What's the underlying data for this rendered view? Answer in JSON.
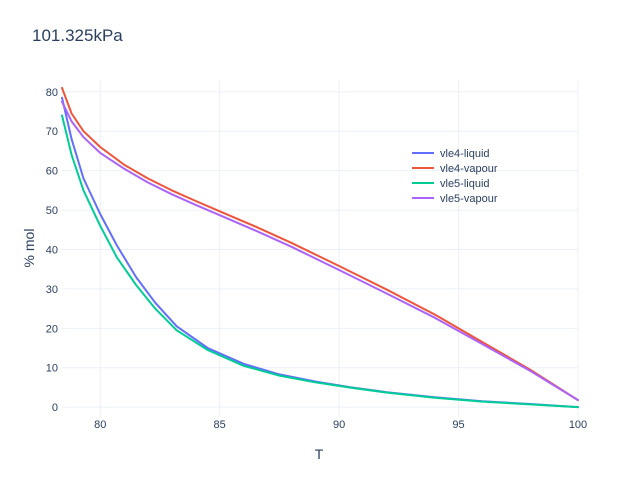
{
  "chart_data": {
    "type": "line",
    "title": "101.325kPa",
    "xlabel": "T",
    "ylabel": "% mol",
    "xlim": [
      78.4,
      100
    ],
    "ylim": [
      -2.5,
      83
    ],
    "x_ticks": [
      80,
      85,
      90,
      95,
      100
    ],
    "y_ticks": [
      0,
      10,
      20,
      30,
      40,
      50,
      60,
      70,
      80
    ],
    "grid": true,
    "legend_position": "right-inside",
    "series": [
      {
        "name": "vle4-liquid",
        "color": "#636efa",
        "x": [
          78.4,
          78.8,
          79.3,
          80.0,
          80.7,
          81.5,
          82.3,
          83.2,
          84.5,
          86.0,
          87.5,
          89.0,
          90.5,
          92.0,
          94.0,
          96.0,
          98.0,
          100.0
        ],
        "y": [
          78.5,
          68.0,
          58.0,
          49.0,
          41.0,
          33.0,
          26.5,
          20.5,
          15.0,
          11.0,
          8.3,
          6.5,
          5.0,
          3.8,
          2.5,
          1.5,
          0.8,
          0.0
        ]
      },
      {
        "name": "vle4-vapour",
        "color": "#ef553b",
        "x": [
          78.4,
          78.8,
          79.3,
          80.0,
          81.0,
          82.0,
          83.0,
          84.0,
          85.0,
          86.5,
          88.0,
          90.0,
          92.0,
          94.0,
          96.0,
          98.0,
          100.0
        ],
        "y": [
          81.0,
          74.5,
          70.0,
          66.0,
          61.5,
          58.0,
          55.0,
          52.3,
          49.7,
          45.8,
          41.7,
          35.8,
          29.8,
          23.5,
          16.5,
          9.5,
          1.8
        ]
      },
      {
        "name": "vle5-liquid",
        "color": "#00cc96",
        "x": [
          78.4,
          78.8,
          79.3,
          80.0,
          80.7,
          81.5,
          82.3,
          83.2,
          84.5,
          86.0,
          87.5,
          89.0,
          90.5,
          92.0,
          94.0,
          96.0,
          98.0,
          100.0
        ],
        "y": [
          74.0,
          64.0,
          55.0,
          46.0,
          38.0,
          31.0,
          25.0,
          19.5,
          14.5,
          10.5,
          8.0,
          6.3,
          4.9,
          3.7,
          2.4,
          1.4,
          0.7,
          0.0
        ]
      },
      {
        "name": "vle5-vapour",
        "color": "#ab63fa",
        "x": [
          78.4,
          78.8,
          79.3,
          80.0,
          81.0,
          82.0,
          83.0,
          84.0,
          85.0,
          86.5,
          88.0,
          90.0,
          92.0,
          94.0,
          96.0,
          98.0,
          100.0
        ],
        "y": [
          77.5,
          72.5,
          68.5,
          64.5,
          60.5,
          57.0,
          54.0,
          51.3,
          48.7,
          44.8,
          40.7,
          34.8,
          28.8,
          22.7,
          16.0,
          9.2,
          1.8
        ]
      }
    ]
  }
}
